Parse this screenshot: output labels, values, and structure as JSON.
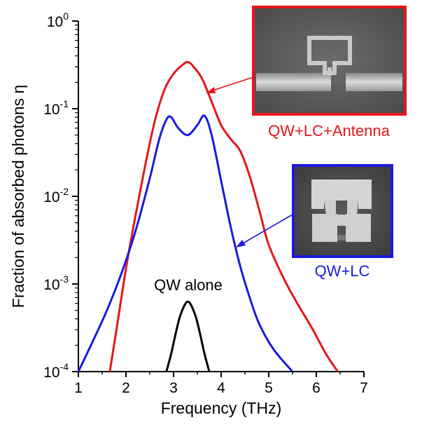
{
  "chart_data": {
    "type": "line",
    "xlabel": "Frequency (THz)",
    "ylabel": "Fraction of absorbed photons η",
    "yscale": "log",
    "xlim": [
      1,
      7
    ],
    "ylim": [
      0.0001,
      1
    ],
    "x_ticks": [
      "1",
      "2",
      "3",
      "4",
      "5",
      "6",
      "7"
    ],
    "y_ticks": [
      {
        "base": "10",
        "exp": "0",
        "value": 1
      },
      {
        "base": "10",
        "exp": "-1",
        "value": 0.1
      },
      {
        "base": "10",
        "exp": "-2",
        "value": 0.01
      },
      {
        "base": "10",
        "exp": "-3",
        "value": 0.001
      },
      {
        "base": "10",
        "exp": "-4",
        "value": 0.0001
      }
    ],
    "grid": false,
    "series": [
      {
        "name": "QW+LC+Antenna",
        "color": "#e5161b",
        "points": [
          [
            1.66,
            0.0001
          ],
          [
            1.8,
            0.0003
          ],
          [
            2.0,
            0.0015
          ],
          [
            2.2,
            0.006
          ],
          [
            2.4,
            0.022
          ],
          [
            2.6,
            0.07
          ],
          [
            2.8,
            0.16
          ],
          [
            3.0,
            0.25
          ],
          [
            3.2,
            0.32
          ],
          [
            3.3,
            0.34
          ],
          [
            3.4,
            0.31
          ],
          [
            3.6,
            0.22
          ],
          [
            3.8,
            0.12
          ],
          [
            4.0,
            0.065
          ],
          [
            4.2,
            0.045
          ],
          [
            4.4,
            0.033
          ],
          [
            4.6,
            0.017
          ],
          [
            4.8,
            0.007
          ],
          [
            5.0,
            0.0028
          ],
          [
            5.3,
            0.0012
          ],
          [
            5.6,
            0.0006
          ],
          [
            5.9,
            0.00032
          ],
          [
            6.2,
            0.00016
          ],
          [
            6.45,
            0.0001
          ]
        ]
      },
      {
        "name": "QW+LC",
        "color": "#1a1adf",
        "points": [
          [
            1.0,
            0.0001
          ],
          [
            1.3,
            0.00022
          ],
          [
            1.6,
            0.0005
          ],
          [
            1.9,
            0.0013
          ],
          [
            2.2,
            0.004
          ],
          [
            2.5,
            0.016
          ],
          [
            2.7,
            0.045
          ],
          [
            2.85,
            0.075
          ],
          [
            2.95,
            0.08
          ],
          [
            3.1,
            0.06
          ],
          [
            3.3,
            0.05
          ],
          [
            3.5,
            0.065
          ],
          [
            3.65,
            0.083
          ],
          [
            3.8,
            0.05
          ],
          [
            4.0,
            0.015
          ],
          [
            4.2,
            0.0045
          ],
          [
            4.4,
            0.0016
          ],
          [
            4.6,
            0.0007
          ],
          [
            4.8,
            0.00035
          ],
          [
            5.1,
            0.00018
          ],
          [
            5.5,
            0.0001
          ]
        ]
      },
      {
        "name": "QW alone",
        "color": "#000000",
        "points": [
          [
            2.85,
            0.0001
          ],
          [
            2.95,
            0.00016
          ],
          [
            3.05,
            0.00028
          ],
          [
            3.15,
            0.00045
          ],
          [
            3.3,
            0.00063
          ],
          [
            3.45,
            0.00045
          ],
          [
            3.55,
            0.00028
          ],
          [
            3.65,
            0.00016
          ],
          [
            3.75,
            0.0001
          ]
        ]
      }
    ],
    "annotations": [
      {
        "text": "QW alone",
        "color": "#000000"
      },
      {
        "text": "QW+LC+Antenna",
        "color": "#e5161b"
      },
      {
        "text": "QW+LC",
        "color": "#1a1adf"
      }
    ],
    "insets": [
      {
        "name": "antenna-sem-image",
        "border_color": "#e5161b"
      },
      {
        "name": "lc-sem-image",
        "border_color": "#1a1adf"
      }
    ]
  }
}
